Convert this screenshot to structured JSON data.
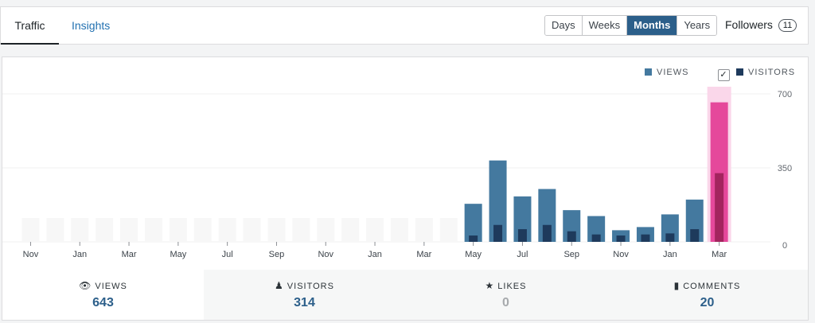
{
  "tabs": [
    "Traffic",
    "Insights"
  ],
  "period_options": [
    "Days",
    "Weeks",
    "Months",
    "Years"
  ],
  "period_selected": "Months",
  "followers": {
    "label": "Followers",
    "count": "11"
  },
  "legend": {
    "views": "VIEWS",
    "visitors": "VISITORS",
    "visitors_checked": true
  },
  "colors": {
    "views": "#44799f",
    "visitors": "#1e3a5c",
    "highlight": "#e5489b",
    "highlight_visitors": "#a3245e",
    "highlight_band": "#fad7ea",
    "empty_bar": "#f7f7f7"
  },
  "chart_data": {
    "type": "bar",
    "categories": [
      "Nov",
      "Dec",
      "Jan",
      "Feb",
      "Mar",
      "Apr",
      "May",
      "Jun",
      "Jul",
      "Aug",
      "Sep",
      "Oct",
      "Nov",
      "Dec",
      "Jan",
      "Feb",
      "Mar",
      "Apr",
      "May",
      "Jun",
      "Jul",
      "Aug",
      "Sep",
      "Oct",
      "Nov",
      "Dec",
      "Jan",
      "Feb",
      "Mar"
    ],
    "tick_labels": [
      "Nov",
      "Jan",
      "Mar",
      "May",
      "Jul",
      "Sep",
      "Nov",
      "Jan",
      "Mar",
      "May",
      "Jul",
      "Sep",
      "Nov",
      "Jan",
      "Mar"
    ],
    "series": [
      {
        "name": "VIEWS",
        "values": [
          0,
          0,
          0,
          0,
          0,
          0,
          0,
          0,
          0,
          0,
          0,
          0,
          0,
          0,
          0,
          0,
          0,
          0,
          180,
          385,
          215,
          250,
          150,
          122,
          55,
          70,
          130,
          200,
          660
        ]
      },
      {
        "name": "VISITORS",
        "values": [
          0,
          0,
          0,
          0,
          0,
          0,
          0,
          0,
          0,
          0,
          0,
          0,
          0,
          0,
          0,
          0,
          0,
          0,
          30,
          80,
          60,
          80,
          50,
          35,
          30,
          35,
          40,
          60,
          325
        ]
      }
    ],
    "y_ticks": [
      "700",
      "350",
      "0"
    ],
    "ylim": [
      0,
      700
    ],
    "highlight_index": 28
  },
  "stats": [
    {
      "label": "VIEWS",
      "value": "643",
      "icon": "eye-icon",
      "active": true
    },
    {
      "label": "VISITORS",
      "value": "314",
      "icon": "person-icon",
      "active": false
    },
    {
      "label": "LIKES",
      "value": "0",
      "icon": "star-icon",
      "active": false
    },
    {
      "label": "COMMENTS",
      "value": "20",
      "icon": "comment-icon",
      "active": false
    }
  ]
}
